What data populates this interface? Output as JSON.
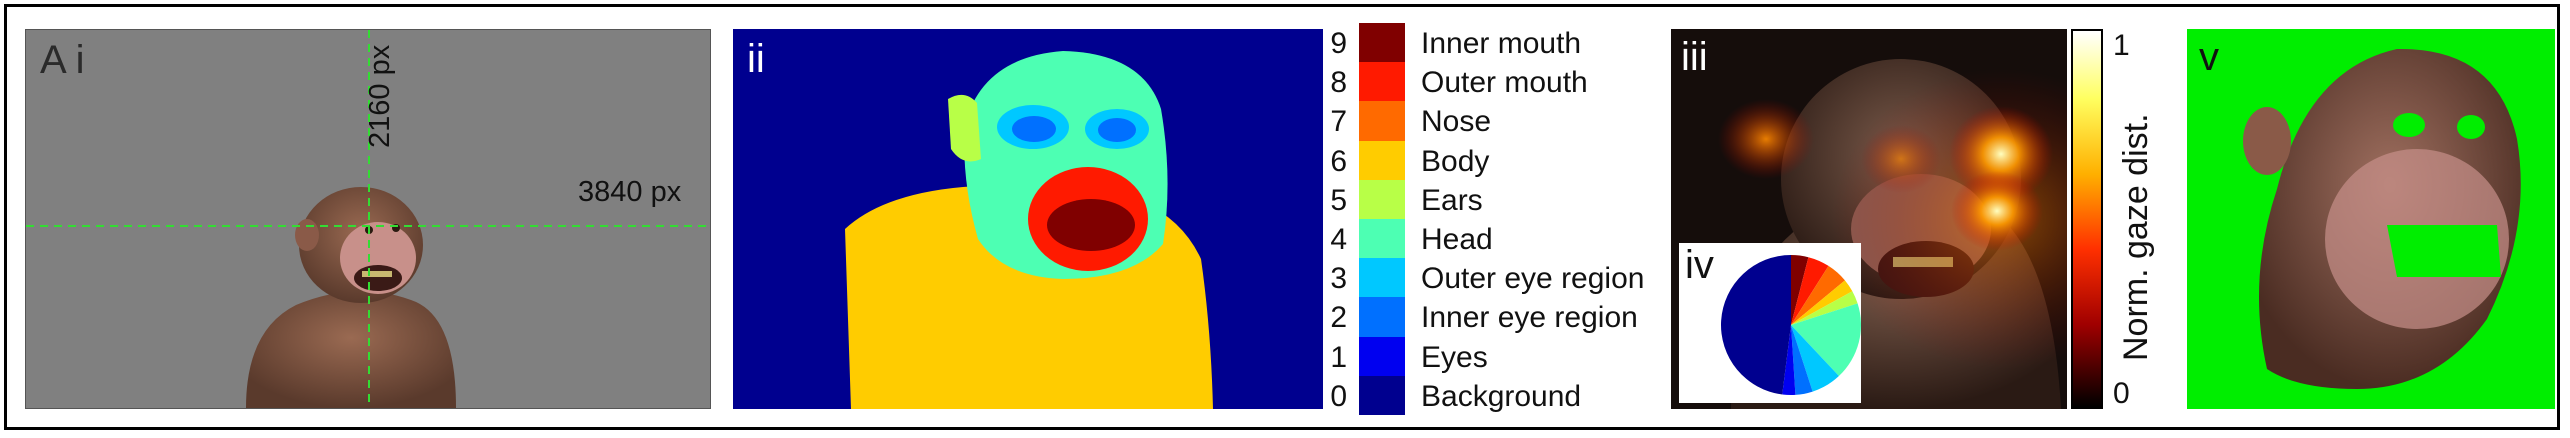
{
  "panels": {
    "a_i": {
      "label": "A i",
      "width_label": "3840 px",
      "height_label": "2160 px"
    },
    "ii": {
      "label": "ii"
    },
    "iii": {
      "label": "iii"
    },
    "iv": {
      "label": "iv"
    },
    "v": {
      "label": "v"
    }
  },
  "segmentation_legend": [
    {
      "value": "9",
      "label": "Inner mouth",
      "color": "#800000"
    },
    {
      "value": "8",
      "label": "Outer mouth",
      "color": "#ff1a00"
    },
    {
      "value": "7",
      "label": "Nose",
      "color": "#ff6a00"
    },
    {
      "value": "6",
      "label": "Body",
      "color": "#ffcc00"
    },
    {
      "value": "5",
      "label": "Ears",
      "color": "#b8ff47"
    },
    {
      "value": "4",
      "label": "Head",
      "color": "#4dffb3"
    },
    {
      "value": "3",
      "label": "Outer eye region",
      "color": "#00c8ff"
    },
    {
      "value": "2",
      "label": "Inner eye region",
      "color": "#0070ff"
    },
    {
      "value": "1",
      "label": "Eyes",
      "color": "#0000f0"
    },
    {
      "value": "0",
      "label": "Background",
      "color": "#00008f"
    }
  ],
  "colorbar": {
    "label": "Norm. gaze dist.",
    "max_label": "1",
    "min_label": "0"
  },
  "colors": {
    "gray_bg": "#808080",
    "green_screen": "#00ee00",
    "seg_bg": "#00008f"
  },
  "chart_data": {
    "type": "pie",
    "title": "",
    "categories": [
      "Inner mouth",
      "Outer mouth",
      "Nose",
      "Body",
      "Ears",
      "Head",
      "Outer eye region",
      "Inner eye region",
      "Eyes",
      "Background"
    ],
    "values": [
      4,
      5,
      5,
      3,
      3,
      18,
      7,
      4,
      3,
      48
    ]
  }
}
